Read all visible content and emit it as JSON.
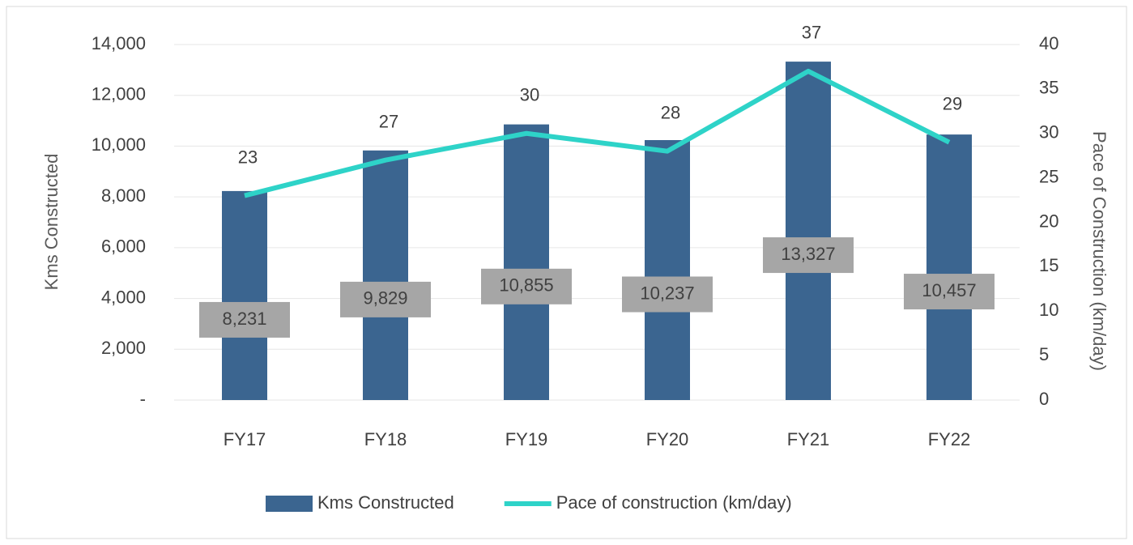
{
  "chart_data": {
    "type": "bar",
    "categories": [
      "FY17",
      "FY18",
      "FY19",
      "FY20",
      "FY21",
      "FY22"
    ],
    "series": [
      {
        "name": "Kms Constructed",
        "type": "bar",
        "color": "#3b6590",
        "values": [
          8231,
          9829,
          10855,
          10237,
          13327,
          10457
        ],
        "value_labels": [
          "8,231",
          "9,829",
          "10,855",
          "10,237",
          "13,327",
          "10,457"
        ]
      },
      {
        "name": "Pace of construction (km/day)",
        "type": "line",
        "axis": "y2",
        "color": "#2ed3c8",
        "values": [
          23,
          27,
          30,
          28,
          37,
          29
        ]
      }
    ],
    "ylabel": "Kms Constructed",
    "y2label": "Pace of Construction (km/day)",
    "ylim": [
      0,
      14000
    ],
    "yticks": [
      {
        "value": 0,
        "label": "-"
      },
      {
        "value": 2000,
        "label": "2,000"
      },
      {
        "value": 4000,
        "label": "4,000"
      },
      {
        "value": 6000,
        "label": "6,000"
      },
      {
        "value": 8000,
        "label": "8,000"
      },
      {
        "value": 10000,
        "label": "10,000"
      },
      {
        "value": 12000,
        "label": "12,000"
      },
      {
        "value": 14000,
        "label": "14,000"
      }
    ],
    "y2lim": [
      0,
      40
    ],
    "y2ticks": [
      0,
      5,
      10,
      15,
      20,
      25,
      30,
      35,
      40
    ],
    "grid": true,
    "legend": "bottom"
  }
}
